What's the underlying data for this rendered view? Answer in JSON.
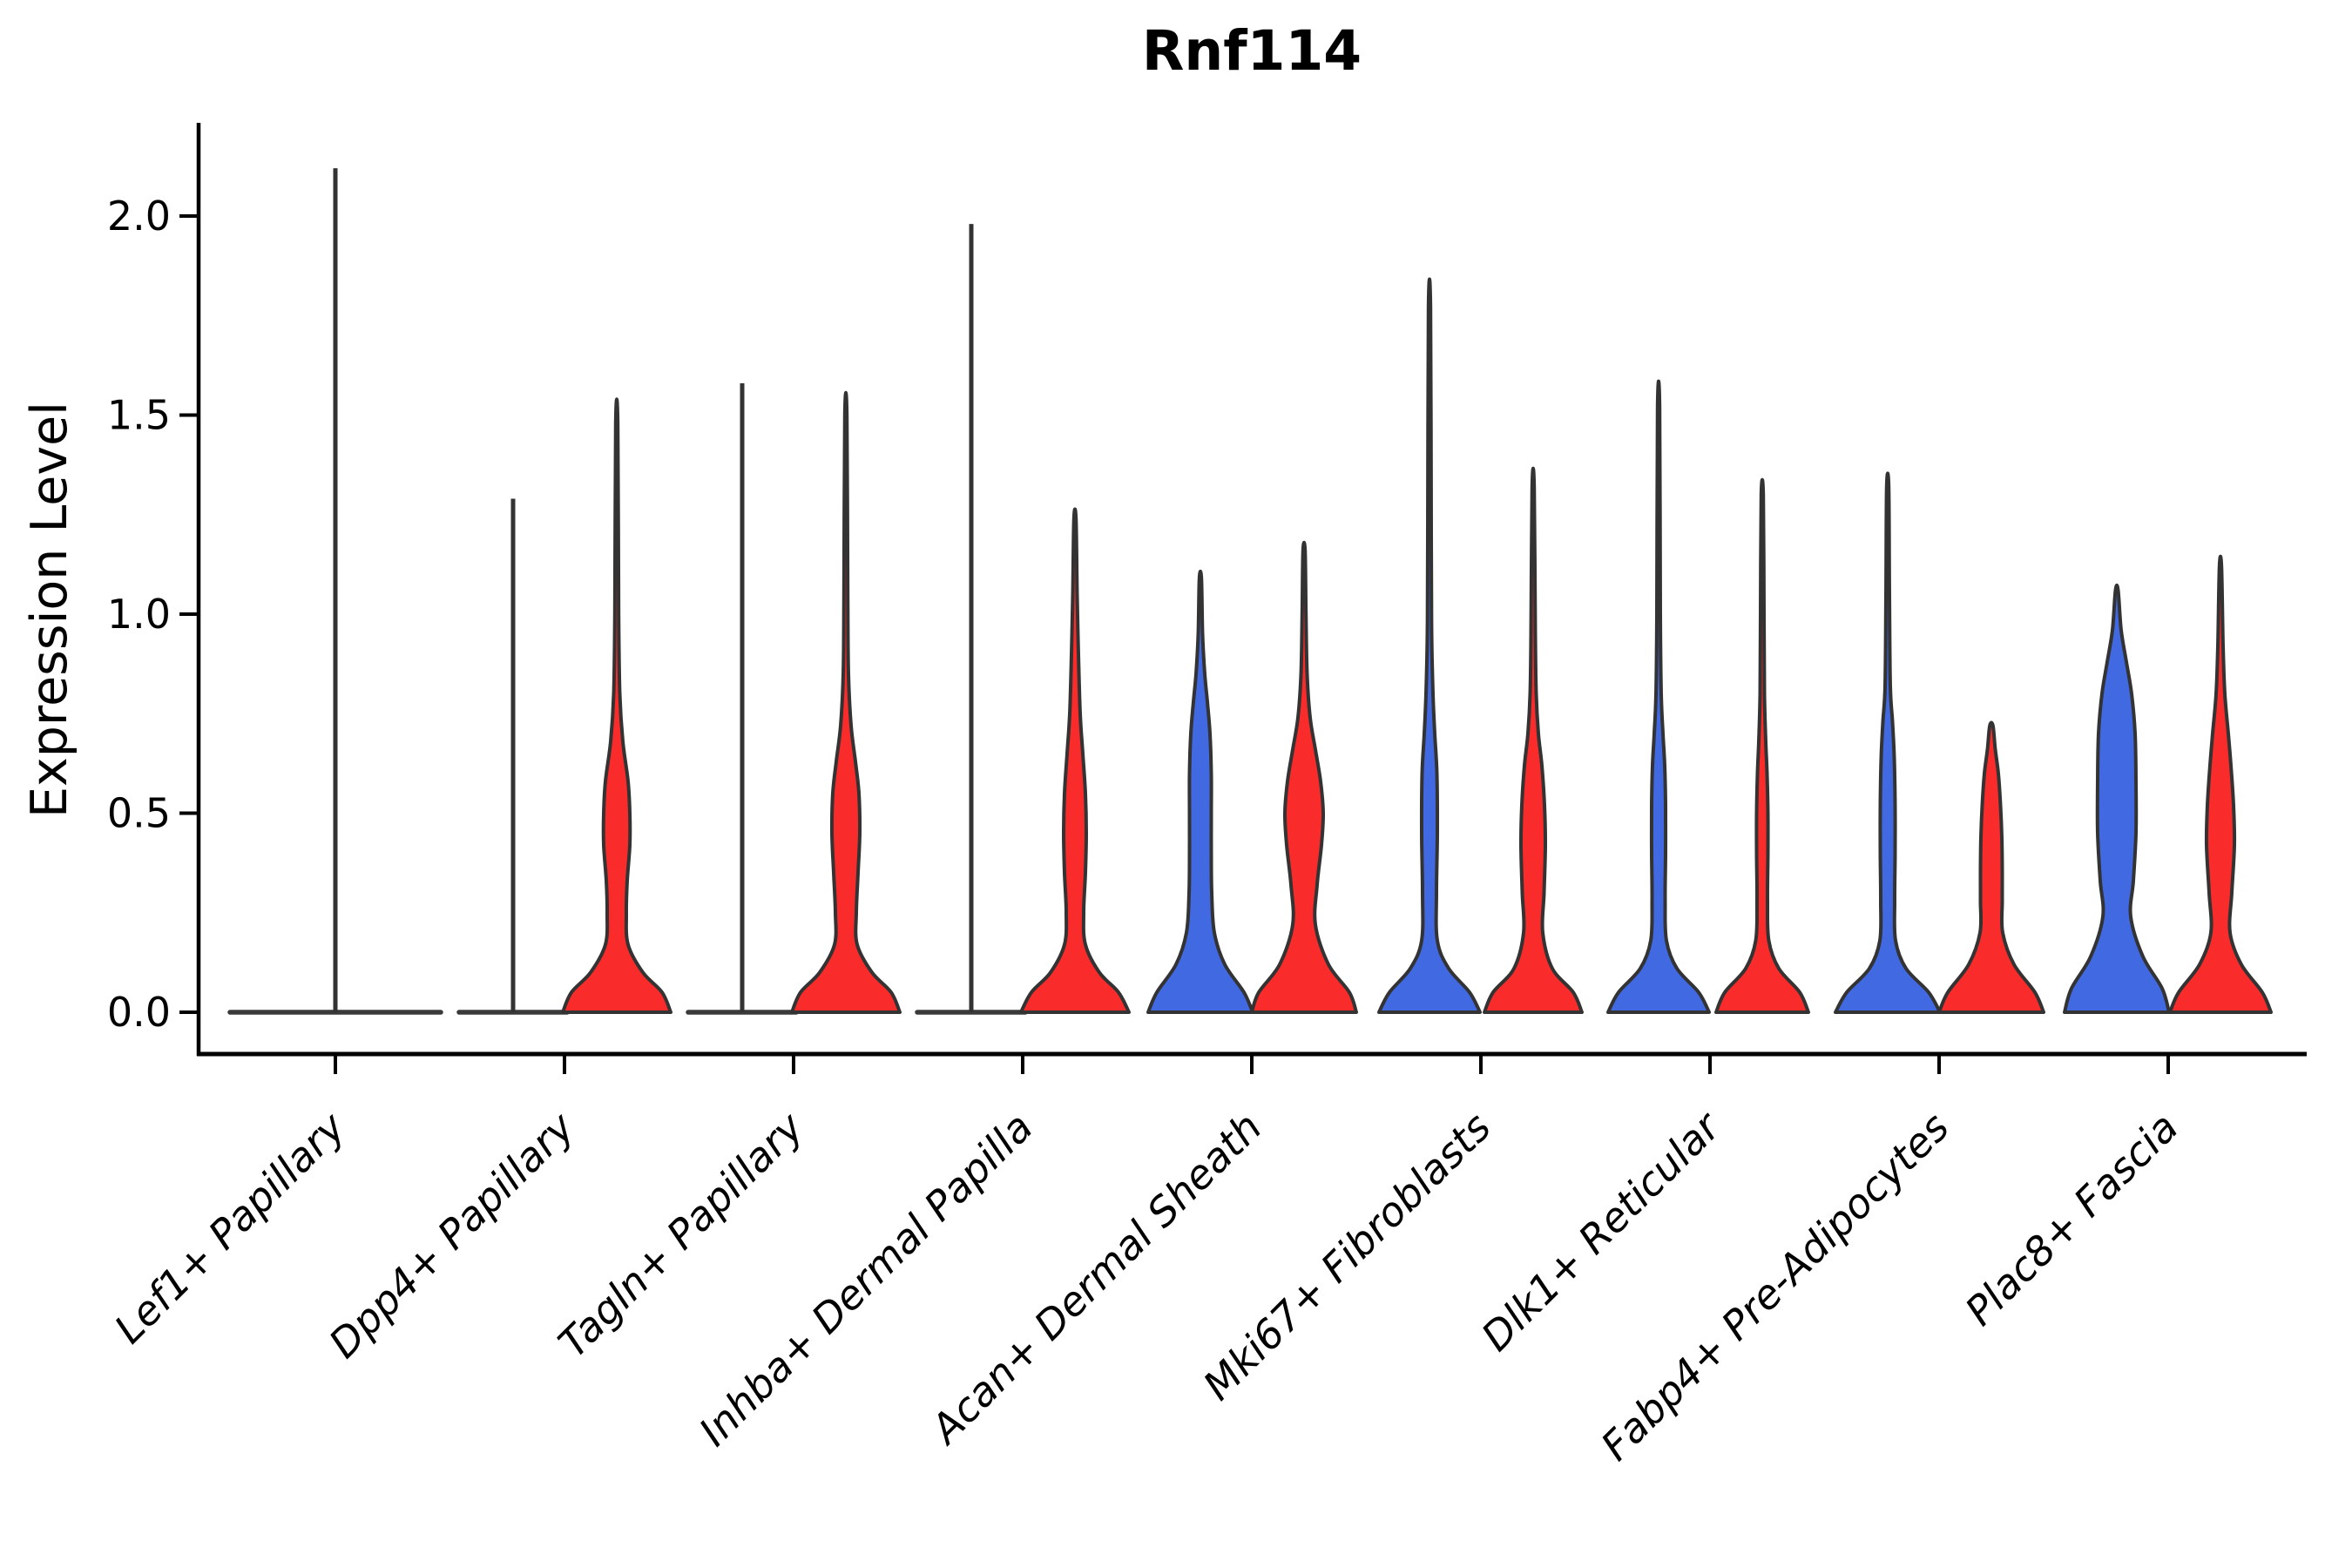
{
  "chart_data": {
    "type": "violin",
    "title": "Rnf114",
    "ylabel": "Expression Level",
    "xlabel": "",
    "ylim": [
      -0.1,
      2.23
    ],
    "yticks": [
      "0.0",
      "0.5",
      "1.0",
      "1.5",
      "2.0"
    ],
    "ytick_values": [
      0.0,
      0.5,
      1.0,
      1.5,
      2.0
    ],
    "legend": "none",
    "grid": false,
    "series_colors": {
      "blue": "#4169E1",
      "red": "#FA2B2B"
    },
    "outline_color": "#333333",
    "axis_color": "#000000",
    "categories": [
      "Lef1+ Papillary",
      "Dpp4+ Papillary",
      "Tagln+ Papillary",
      "Inhba+ Dermal Papilla",
      "Acan+ Dermal Sheath",
      "Mki67+ Fibroblasts",
      "Dlk1+ Reticular",
      "Fabp4+ Pre-Adipocytes",
      "Plac8+ Fascia"
    ],
    "groups": [
      {
        "label": "Lef1+ Papillary",
        "blue": {
          "type": "collapsed",
          "offset": 0,
          "half_span": 121,
          "max": 2.12
        },
        "red": null
      },
      {
        "label": "Dpp4+ Papillary",
        "blue": {
          "type": "collapsed",
          "offset": -59,
          "half_span": 62,
          "max": 1.29
        },
        "red": {
          "type": "violin",
          "offset": 60,
          "max": 1.48,
          "profile": [
            [
              0,
              62
            ],
            [
              0.05,
              52
            ],
            [
              0.1,
              30
            ],
            [
              0.17,
              13
            ],
            [
              0.25,
              11
            ],
            [
              0.33,
              12
            ],
            [
              0.42,
              15
            ],
            [
              0.5,
              15
            ],
            [
              0.58,
              13
            ],
            [
              0.68,
              7
            ],
            [
              0.8,
              3.5
            ],
            [
              1.0,
              2.2
            ],
            [
              1.48,
              1.2
            ]
          ]
        }
      },
      {
        "label": "Tagln+ Papillary",
        "blue": {
          "type": "collapsed",
          "offset": -59,
          "half_span": 62,
          "max": 1.58
        },
        "red": {
          "type": "violin",
          "offset": 60,
          "max": 1.5,
          "profile": [
            [
              0,
              62
            ],
            [
              0.05,
              52
            ],
            [
              0.1,
              30
            ],
            [
              0.17,
              13
            ],
            [
              0.25,
              12
            ],
            [
              0.35,
              14
            ],
            [
              0.45,
              16
            ],
            [
              0.55,
              15
            ],
            [
              0.63,
              11
            ],
            [
              0.72,
              6
            ],
            [
              0.85,
              3
            ],
            [
              1.05,
              2.2
            ],
            [
              1.5,
              1.2
            ]
          ]
        }
      },
      {
        "label": "Inhba+ Dermal Papilla",
        "blue": {
          "type": "collapsed",
          "offset": -59,
          "half_span": 62,
          "max": 1.98
        },
        "red": {
          "type": "violin",
          "offset": 60,
          "max": 1.24,
          "profile": [
            [
              0,
              62
            ],
            [
              0.05,
              50
            ],
            [
              0.1,
              28
            ],
            [
              0.17,
              12
            ],
            [
              0.25,
              10
            ],
            [
              0.35,
              12
            ],
            [
              0.45,
              13
            ],
            [
              0.55,
              12
            ],
            [
              0.65,
              9
            ],
            [
              0.75,
              6
            ],
            [
              0.9,
              4
            ],
            [
              1.05,
              2.5
            ],
            [
              1.24,
              1.2
            ]
          ]
        }
      },
      {
        "label": "Acan+ Dermal Sheath",
        "blue": {
          "type": "violin",
          "offset": -59,
          "max": 1.09,
          "profile": [
            [
              0,
              60
            ],
            [
              0.05,
              50
            ],
            [
              0.12,
              28
            ],
            [
              0.2,
              16
            ],
            [
              0.3,
              13
            ],
            [
              0.4,
              12.5
            ],
            [
              0.5,
              12.5
            ],
            [
              0.6,
              12.5
            ],
            [
              0.7,
              11
            ],
            [
              0.78,
              8
            ],
            [
              0.85,
              5
            ],
            [
              0.95,
              2.5
            ],
            [
              1.09,
              1.2
            ]
          ]
        },
        "red": {
          "type": "violin",
          "offset": 60,
          "max": 1.16,
          "profile": [
            [
              0,
              60
            ],
            [
              0.05,
              52
            ],
            [
              0.12,
              28
            ],
            [
              0.22,
              13
            ],
            [
              0.32,
              15
            ],
            [
              0.42,
              20
            ],
            [
              0.5,
              22
            ],
            [
              0.58,
              19
            ],
            [
              0.66,
              13
            ],
            [
              0.74,
              7
            ],
            [
              0.85,
              3.5
            ],
            [
              1.0,
              2.2
            ],
            [
              1.16,
              1.2
            ]
          ]
        }
      },
      {
        "label": "Mki67+ Fibroblasts",
        "blue": {
          "type": "violin",
          "offset": -59,
          "max": 1.77,
          "profile": [
            [
              0,
              58
            ],
            [
              0.05,
              46
            ],
            [
              0.11,
              22
            ],
            [
              0.18,
              9
            ],
            [
              0.3,
              8
            ],
            [
              0.45,
              9
            ],
            [
              0.6,
              8.5
            ],
            [
              0.7,
              6
            ],
            [
              0.8,
              4
            ],
            [
              0.95,
              2.5
            ],
            [
              1.2,
              2
            ],
            [
              1.77,
              1.2
            ]
          ]
        },
        "red": {
          "type": "violin",
          "offset": 60,
          "max": 1.32,
          "profile": [
            [
              0,
              56
            ],
            [
              0.05,
              46
            ],
            [
              0.11,
              22
            ],
            [
              0.2,
              11
            ],
            [
              0.3,
              12.5
            ],
            [
              0.42,
              14
            ],
            [
              0.52,
              13
            ],
            [
              0.62,
              10
            ],
            [
              0.7,
              6
            ],
            [
              0.8,
              3.5
            ],
            [
              0.95,
              2.5
            ],
            [
              1.32,
              1.2
            ]
          ]
        }
      },
      {
        "label": "Dlk1+ Reticular",
        "blue": {
          "type": "violin",
          "offset": -59,
          "max": 1.52,
          "profile": [
            [
              0,
              58
            ],
            [
              0.05,
              46
            ],
            [
              0.11,
              21
            ],
            [
              0.18,
              9
            ],
            [
              0.28,
              7.5
            ],
            [
              0.4,
              8
            ],
            [
              0.52,
              8
            ],
            [
              0.62,
              7
            ],
            [
              0.7,
              5
            ],
            [
              0.8,
              3
            ],
            [
              1.0,
              2
            ],
            [
              1.52,
              1.2
            ]
          ]
        },
        "red": {
          "type": "violin",
          "offset": 60,
          "max": 1.3,
          "profile": [
            [
              0,
              53
            ],
            [
              0.05,
              43
            ],
            [
              0.11,
              19
            ],
            [
              0.18,
              7.5
            ],
            [
              0.28,
              6
            ],
            [
              0.4,
              6.5
            ],
            [
              0.5,
              6.5
            ],
            [
              0.6,
              5.5
            ],
            [
              0.68,
              4
            ],
            [
              0.8,
              2.5
            ],
            [
              1.0,
              2
            ],
            [
              1.3,
              1.2
            ]
          ]
        }
      },
      {
        "label": "Fabp4+ Pre-Adipocytes",
        "blue": {
          "type": "violin",
          "offset": -59,
          "max": 1.32,
          "profile": [
            [
              0,
              60
            ],
            [
              0.05,
              47
            ],
            [
              0.11,
              21
            ],
            [
              0.18,
              9
            ],
            [
              0.28,
              8
            ],
            [
              0.4,
              8.5
            ],
            [
              0.52,
              8.5
            ],
            [
              0.64,
              7.5
            ],
            [
              0.73,
              5.5
            ],
            [
              0.82,
              3
            ],
            [
              1.05,
              2
            ],
            [
              1.32,
              1.2
            ]
          ]
        },
        "red": {
          "type": "violin",
          "offset": 60,
          "max": 0.72,
          "profile": [
            [
              0,
              60
            ],
            [
              0.05,
              50
            ],
            [
              0.12,
              26
            ],
            [
              0.2,
              13
            ],
            [
              0.28,
              12.5
            ],
            [
              0.36,
              12.5
            ],
            [
              0.44,
              12
            ],
            [
              0.52,
              10.5
            ],
            [
              0.6,
              8
            ],
            [
              0.66,
              4.5
            ],
            [
              0.72,
              1.8
            ]
          ]
        }
      },
      {
        "label": "Plac8+ Fascia",
        "blue": {
          "type": "violin",
          "offset": -59,
          "max": 1.06,
          "profile": [
            [
              0,
              60
            ],
            [
              0.06,
              52
            ],
            [
              0.14,
              30
            ],
            [
              0.24,
              16
            ],
            [
              0.33,
              19
            ],
            [
              0.45,
              22
            ],
            [
              0.58,
              22
            ],
            [
              0.7,
              21
            ],
            [
              0.8,
              17
            ],
            [
              0.88,
              11
            ],
            [
              0.96,
              5
            ],
            [
              1.06,
              1.5
            ]
          ]
        },
        "red": {
          "type": "violin",
          "offset": 60,
          "max": 1.12,
          "profile": [
            [
              0,
              58
            ],
            [
              0.05,
              48
            ],
            [
              0.12,
              24
            ],
            [
              0.2,
              11
            ],
            [
              0.3,
              13
            ],
            [
              0.42,
              16
            ],
            [
              0.52,
              15
            ],
            [
              0.62,
              12
            ],
            [
              0.7,
              9
            ],
            [
              0.8,
              5
            ],
            [
              0.92,
              3
            ],
            [
              1.12,
              1.2
            ]
          ]
        }
      }
    ]
  }
}
